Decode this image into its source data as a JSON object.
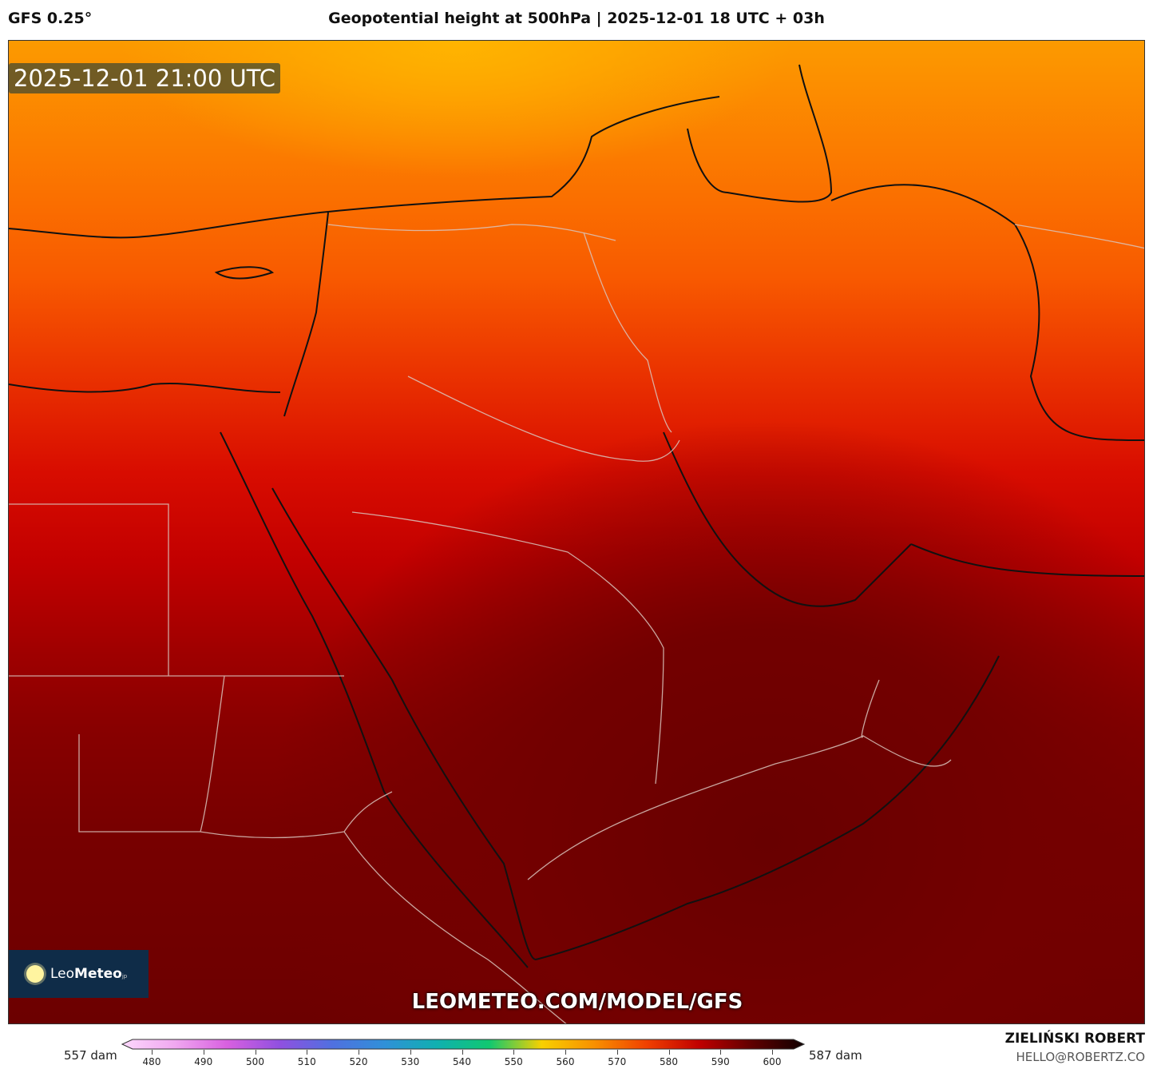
{
  "header": {
    "model": "GFS 0.25°",
    "title": "Geopotential height at 500hPa | 2025-12-01 18 UTC + 03h"
  },
  "map": {
    "valid_time": "2025-12-01 21:00 UTC",
    "url_watermark": "LEOMETEO.COM/MODEL/GFS",
    "logo": {
      "text_light": "Leo",
      "text_bold": "Meteo",
      "suffix": "jp"
    }
  },
  "colorbar": {
    "min_label": "557 dam",
    "max_label": "587 dam",
    "ticks": [
      "480",
      "490",
      "500",
      "510",
      "520",
      "530",
      "540",
      "550",
      "560",
      "570",
      "580",
      "590",
      "600"
    ],
    "colors": [
      "#fcd8fc",
      "#f0a8f0",
      "#d860e0",
      "#9050e0",
      "#5070e0",
      "#3090d8",
      "#10b0b0",
      "#10c870",
      "#f8d000",
      "#f89000",
      "#f04000",
      "#c00000",
      "#600000",
      "#100000"
    ]
  },
  "credits": {
    "author": "ZIELIŃSKI ROBERT",
    "email": "HELLO@ROBERTZ.CO"
  }
}
